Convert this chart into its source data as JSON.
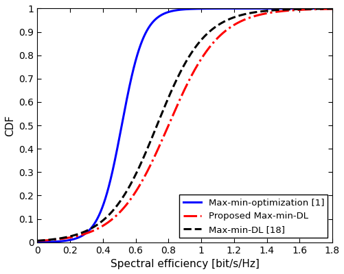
{
  "title": "",
  "xlabel": "Spectral efficiency [bit/s/Hz]",
  "ylabel": "CDF",
  "xlim": [
    0,
    1.8
  ],
  "ylim": [
    0,
    1.0
  ],
  "xticks": [
    0,
    0.2,
    0.4,
    0.6,
    0.8,
    1.0,
    1.2,
    1.4,
    1.6,
    1.8
  ],
  "yticks": [
    0,
    0.1,
    0.2,
    0.3,
    0.4,
    0.5,
    0.6,
    0.7,
    0.8,
    0.9,
    1.0
  ],
  "curves": [
    {
      "label": "Max-min-optimization [1]",
      "color": "#0000ff",
      "linestyle": "solid",
      "linewidth": 2.2,
      "mu": 0.515,
      "s": 0.068
    },
    {
      "label": "Proposed Max-min-DL",
      "color": "#ff0000",
      "linestyle": "dashdot",
      "linewidth": 2.2,
      "mu": 0.8,
      "s": 0.155
    },
    {
      "label": "Max-min-DL [18]",
      "color": "#000000",
      "linestyle": "dashed",
      "linewidth": 2.2,
      "mu": 0.73,
      "s": 0.145
    }
  ],
  "legend_loc": "lower right",
  "legend_fontsize": 9.5,
  "tick_fontsize": 10,
  "label_fontsize": 11,
  "background_color": "#ffffff"
}
